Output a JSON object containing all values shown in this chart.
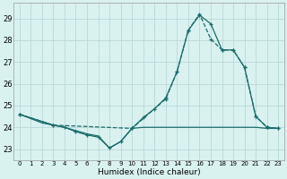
{
  "xlabel": "Humidex (Indice chaleur)",
  "xlim": [
    -0.5,
    23.5
  ],
  "ylim": [
    22.5,
    29.7
  ],
  "yticks": [
    23,
    24,
    25,
    26,
    27,
    28,
    29
  ],
  "xticks": [
    0,
    1,
    2,
    3,
    4,
    5,
    6,
    7,
    8,
    9,
    10,
    11,
    12,
    13,
    14,
    15,
    16,
    17,
    18,
    19,
    20,
    21,
    22,
    23
  ],
  "bg_color": "#d9f2f0",
  "grid_color": "#b8d8d8",
  "line_color": "#1a6b6b",
  "line1": {
    "x": [
      0,
      1,
      2,
      3,
      4,
      5,
      6,
      7,
      8,
      9,
      10,
      11,
      12,
      13,
      14,
      15,
      16,
      17,
      18,
      19,
      20,
      21,
      22,
      23
    ],
    "y": [
      24.6,
      24.4,
      24.2,
      24.1,
      24.0,
      23.85,
      23.7,
      23.6,
      23.05,
      23.35,
      23.95,
      24.0,
      24.0,
      24.0,
      24.0,
      24.0,
      24.0,
      24.0,
      24.0,
      24.0,
      24.0,
      24.0,
      23.95,
      23.95
    ],
    "linestyle": "-",
    "marker": null
  },
  "line2": {
    "x": [
      0,
      3,
      10,
      13,
      14,
      15,
      16,
      17,
      18,
      19,
      20,
      21,
      22,
      23
    ],
    "y": [
      24.6,
      24.1,
      23.95,
      25.3,
      26.55,
      28.45,
      29.2,
      28.05,
      27.55,
      27.55,
      26.75,
      24.5,
      24.0,
      23.95
    ],
    "linestyle": "--",
    "marker": "+"
  },
  "line3": {
    "x": [
      0,
      3,
      4,
      5,
      6,
      7,
      8,
      9,
      10,
      11,
      12,
      13,
      14,
      15,
      16,
      17,
      18,
      19,
      20,
      21,
      22,
      23
    ],
    "y": [
      24.6,
      24.1,
      24.0,
      23.8,
      23.65,
      23.55,
      23.05,
      23.35,
      23.95,
      24.45,
      24.85,
      25.35,
      26.55,
      28.45,
      29.15,
      28.75,
      27.55,
      27.55,
      26.75,
      24.5,
      24.0,
      23.95
    ],
    "linestyle": "-",
    "marker": "+"
  }
}
